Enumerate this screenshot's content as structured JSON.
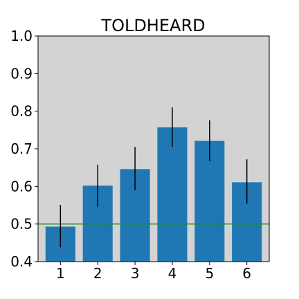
{
  "chart_data": {
    "type": "bar",
    "title": "TOLDHEARD",
    "xlabel": "",
    "ylabel": "",
    "categories": [
      "1",
      "2",
      "3",
      "4",
      "5",
      "6"
    ],
    "values": [
      0.493,
      0.602,
      0.646,
      0.757,
      0.721,
      0.611
    ],
    "error_low": [
      0.438,
      0.546,
      0.59,
      0.705,
      0.667,
      0.554
    ],
    "error_high": [
      0.551,
      0.658,
      0.705,
      0.81,
      0.776,
      0.672
    ],
    "ylim": [
      0.4,
      1.0
    ],
    "yticks": [
      "0.4",
      "0.5",
      "0.6",
      "0.7",
      "0.8",
      "0.9",
      "1.0"
    ],
    "reference_line": 0.5,
    "grid": false,
    "colors": {
      "bar": "#1f77b4",
      "plot_background": "#d3d3d3",
      "reference_line": "#228b22",
      "error_bar": "#000000"
    }
  }
}
